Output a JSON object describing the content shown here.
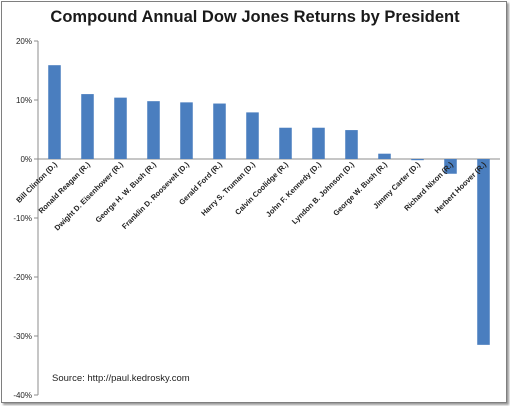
{
  "chart_data": {
    "type": "bar",
    "title": "Compound Annual Dow Jones Returns by President",
    "xlabel": "",
    "ylabel": "",
    "ylim": [
      -40,
      20
    ],
    "yticks": [
      "20%",
      "10%",
      "0%",
      "-10%",
      "-20%",
      "-30%",
      "-40%"
    ],
    "ytick_values": [
      20,
      10,
      0,
      -10,
      -20,
      -30,
      -40
    ],
    "grid": false,
    "legend": "none",
    "bar_color": "#4a7ebf",
    "categories": [
      "Bill Clinton (D.)",
      "Ronald Reagan (R.)",
      "Dwight D. Eisenhower (R.)",
      "George H. W. Bush (R.)",
      "Franklin D. Roosevelt (D.)",
      "Gerald Ford (R.)",
      "Harry S. Truman (D.)",
      "Calvin Coolidge (R.)",
      "John F. Kennedy (D.)",
      "Lyndon B. Johnson (D.)",
      "George W. Bush (R.)",
      "Jimmy Carter (D.)",
      "Richard Nixon (R.)",
      "Herbert Hoover (R.)"
    ],
    "values": [
      15.9,
      11.0,
      10.4,
      9.8,
      9.6,
      9.4,
      7.9,
      5.3,
      5.3,
      4.9,
      0.9,
      -0.2,
      -2.5,
      -31.5
    ],
    "annotation": "Source: http://paul.kedrosky.com"
  }
}
